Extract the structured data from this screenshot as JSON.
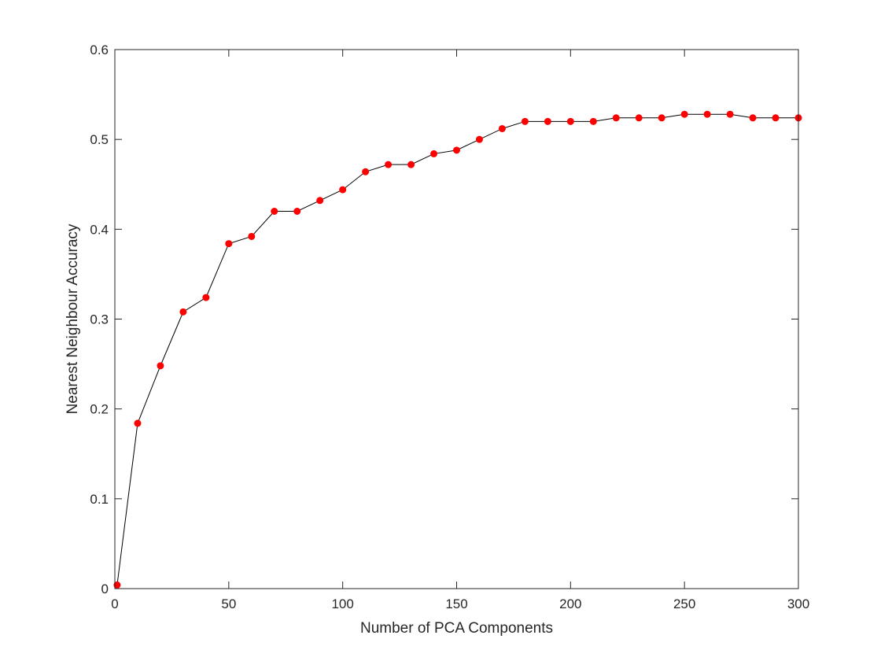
{
  "chart_data": {
    "type": "line",
    "title": "",
    "xlabel": "Number of PCA Components",
    "ylabel": "Nearest Neighbour Accuracy",
    "xlim": [
      0,
      300
    ],
    "ylim": [
      0,
      0.6
    ],
    "xticks": [
      0,
      50,
      100,
      150,
      200,
      250,
      300
    ],
    "xtick_labels": [
      "0",
      "50",
      "100",
      "150",
      "200",
      "250",
      "300"
    ],
    "yticks": [
      0,
      0.1,
      0.2,
      0.3,
      0.4,
      0.5,
      0.6
    ],
    "ytick_labels": [
      "0",
      "0.1",
      "0.2",
      "0.3",
      "0.4",
      "0.5",
      "0.6"
    ],
    "grid": false,
    "legend": "none",
    "series": [
      {
        "line_color": "#000000",
        "marker_color": "#ff0000",
        "marker": "dot",
        "x": [
          1,
          10,
          20,
          30,
          40,
          50,
          60,
          70,
          80,
          90,
          100,
          110,
          120,
          130,
          140,
          150,
          160,
          170,
          180,
          190,
          200,
          210,
          220,
          230,
          240,
          250,
          260,
          270,
          280,
          290,
          300
        ],
        "y": [
          0.004,
          0.184,
          0.248,
          0.308,
          0.324,
          0.384,
          0.392,
          0.42,
          0.42,
          0.432,
          0.444,
          0.464,
          0.472,
          0.472,
          0.484,
          0.488,
          0.5,
          0.512,
          0.52,
          0.52,
          0.52,
          0.52,
          0.524,
          0.524,
          0.524,
          0.528,
          0.528,
          0.528,
          0.524,
          0.524,
          0.524
        ]
      }
    ]
  }
}
